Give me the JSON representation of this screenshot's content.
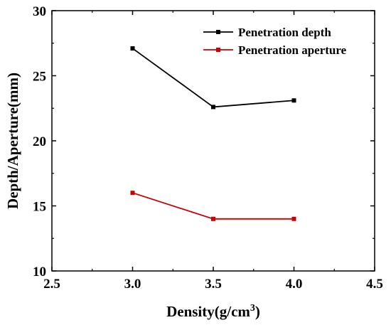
{
  "chart_data": {
    "type": "line",
    "xlabel": "Density(g/cm",
    "xlabel_superscript": "3",
    "xlabel_suffix": ")",
    "ylabel": "Depth/Aperture(mm)",
    "xlim": [
      2.5,
      4.5
    ],
    "ylim": [
      10,
      30
    ],
    "xticks": [
      "2.5",
      "3.0",
      "3.5",
      "4.0",
      "4.5"
    ],
    "yticks": [
      "10",
      "15",
      "20",
      "25",
      "30"
    ],
    "grid": false,
    "legend_position": "top-right",
    "x": [
      3.0,
      3.5,
      4.0
    ],
    "series": [
      {
        "name": "Penetration depth",
        "values": [
          27.1,
          22.6,
          23.1
        ],
        "color": "#000000",
        "marker": "square"
      },
      {
        "name": "Penetration aperture",
        "values": [
          16.0,
          14.0,
          14.0
        ],
        "color": "#cc0000",
        "marker": "square"
      }
    ]
  }
}
